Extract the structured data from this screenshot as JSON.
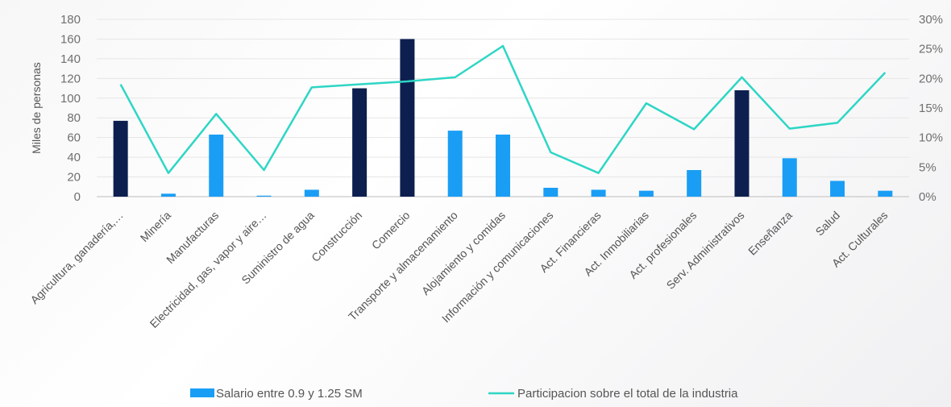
{
  "chart_data": {
    "type": "bar",
    "categories": [
      "Agricultura, ganadería,…",
      "Minería",
      "Manufacturas",
      "Electricidad, gas, vapor y aire…",
      "Suministro de agua",
      "Construcción",
      "Comercio",
      "Transporte y almacenamiento",
      "Alojamiento y comidas",
      "Información y comunicaciones",
      "Act. Financieras",
      "Act. Inmobiliarias",
      "Act. profesionales",
      "Serv. Administrativos",
      "Enseñanza",
      "Salud",
      "Act. Culturales"
    ],
    "series": [
      {
        "name": "Salario entre 0.9 y 1.25 SM",
        "kind": "bar",
        "axis": "left",
        "values": [
          77,
          3,
          63,
          1,
          7,
          110,
          160,
          67,
          63,
          9,
          7,
          6,
          27,
          108,
          39,
          16,
          6
        ]
      },
      {
        "name": "Participacion sobre el total de la industria",
        "kind": "line",
        "axis": "right",
        "color": "#2ed6c5",
        "values": [
          19,
          4,
          14,
          4.5,
          18.5,
          19,
          19.5,
          20.2,
          25.5,
          7.5,
          4,
          15.8,
          11.4,
          20.2,
          11.5,
          12.5,
          21
        ]
      }
    ],
    "highlighted_categories": [
      "Agricultura, ganadería,…",
      "Construcción",
      "Comercio",
      "Serv. Administrativos"
    ],
    "colors": {
      "bar": "#1a9ef5",
      "bar_highlight": "#0d1f4f",
      "line": "#2ed6c5"
    },
    "yaxis_left": {
      "label": "Miles de personas",
      "ylim": [
        0,
        180
      ],
      "ticks": [
        "0",
        "20",
        "40",
        "60",
        "80",
        "100",
        "120",
        "140",
        "160",
        "180"
      ]
    },
    "yaxis_right": {
      "ylim": [
        0,
        30
      ],
      "ticks": [
        "0%",
        "5%",
        "10%",
        "15%",
        "20%",
        "25%",
        "30%"
      ]
    },
    "grid": true,
    "legend_position": "bottom"
  }
}
